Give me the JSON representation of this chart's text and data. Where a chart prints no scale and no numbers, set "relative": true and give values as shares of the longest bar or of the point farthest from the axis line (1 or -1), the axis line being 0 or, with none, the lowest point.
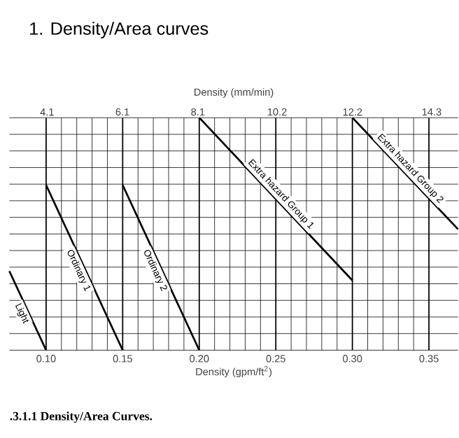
{
  "chart_data": {
    "type": "line",
    "title": "1.    Density/Area curves",
    "xlabel": "Density (gpm/ft$^{2}$)",
    "x2label": "Density (mm/min)",
    "annotations": [
      ".3.1.1 Density/Area Curves."
    ],
    "relative": true,
    "grid": true,
    "marker": "none",
    "line_style": "solid",
    "xlim": [
      0.076,
      0.369
    ],
    "xticks": [
      {
        "value": 0.1,
        "label": "0.10"
      },
      {
        "value": 0.15,
        "label": "0.15"
      },
      {
        "value": 0.2,
        "label": "0.20"
      },
      {
        "value": 0.25,
        "label": "0.25"
      },
      {
        "value": 0.3,
        "label": "0.30"
      },
      {
        "value": 0.35,
        "label": "0.35"
      }
    ],
    "x2lim": [
      3.1,
      15.0
    ],
    "x2ticks": [
      4.1,
      6.1,
      8.1,
      10.2,
      12.2,
      14.3
    ],
    "series": [
      {
        "name": "Light",
        "color": "#000000",
        "x": [
          0.076,
          0.1
        ],
        "values": [
          0.34,
          0
        ]
      },
      {
        "name": "Ordinary 1",
        "color": "#000000",
        "x": [
          0.1,
          0.15
        ],
        "values": [
          0.71,
          0
        ]
      },
      {
        "name": "Ordinary 2",
        "color": "#000000",
        "x": [
          0.15,
          0.2
        ],
        "values": [
          0.71,
          0
        ]
      },
      {
        "name": "Extra hazard Group 1",
        "color": "#000000",
        "x": [
          0.2,
          0.3
        ],
        "values": [
          1,
          0.3
        ]
      },
      {
        "name": "Extra hazard Group 2",
        "color": "#000000",
        "x": [
          0.3,
          0.369
        ],
        "values": [
          1,
          0.52
        ]
      }
    ]
  }
}
